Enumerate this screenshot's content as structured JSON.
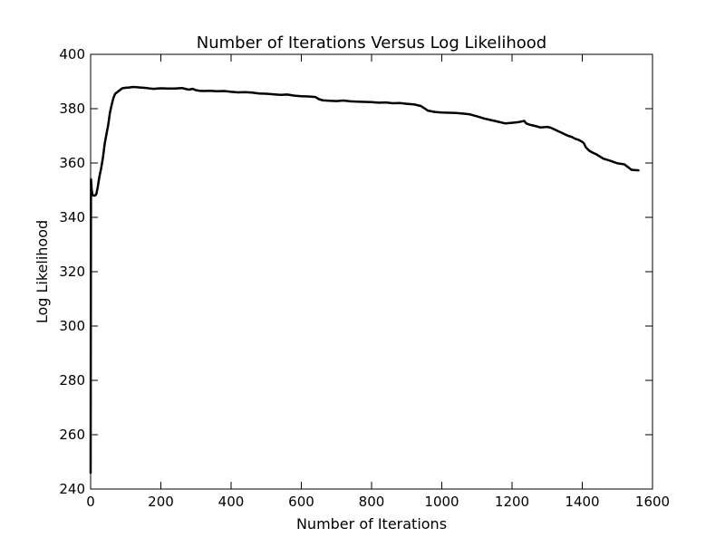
{
  "chart_data": {
    "type": "line",
    "title": "Number of Iterations Versus Log Likelihood",
    "xlabel": "Number of Iterations",
    "ylabel": "Log Likelihood",
    "xlim": [
      0,
      1600
    ],
    "ylim": [
      240,
      400
    ],
    "xticks": [
      0,
      200,
      400,
      600,
      800,
      1000,
      1200,
      1400,
      1600
    ],
    "yticks": [
      240,
      260,
      280,
      300,
      320,
      340,
      360,
      380,
      400
    ],
    "xtick_labels": [
      "0",
      "200",
      "400",
      "600",
      "800",
      "1000",
      "1200",
      "1400",
      "1600"
    ],
    "ytick_labels": [
      "240",
      "260",
      "280",
      "300",
      "320",
      "340",
      "360",
      "380",
      "400"
    ],
    "grid": false,
    "legend": "none",
    "line_color": "#000000",
    "series": [
      {
        "x": [
          0,
          1,
          2,
          3,
          5,
          8,
          12,
          16,
          20,
          25,
          30,
          35,
          40,
          45,
          50,
          55,
          60,
          65,
          70,
          75,
          80,
          85,
          90,
          100,
          110,
          120,
          130,
          140,
          150,
          160,
          170,
          180,
          190,
          200,
          220,
          240,
          260,
          270,
          280,
          290,
          300,
          310,
          320,
          340,
          360,
          380,
          400,
          420,
          440,
          460,
          480,
          500,
          520,
          540,
          560,
          580,
          600,
          620,
          640,
          650,
          660,
          680,
          700,
          720,
          740,
          760,
          780,
          800,
          820,
          840,
          860,
          880,
          900,
          920,
          930,
          940,
          950,
          960,
          980,
          1000,
          1020,
          1040,
          1060,
          1080,
          1100,
          1120,
          1140,
          1160,
          1180,
          1200,
          1220,
          1235,
          1240,
          1250,
          1260,
          1270,
          1280,
          1300,
          1310,
          1320,
          1330,
          1340,
          1350,
          1360,
          1370,
          1380,
          1390,
          1400,
          1405,
          1410,
          1420,
          1430,
          1440,
          1460,
          1480,
          1500,
          1520,
          1540,
          1560
        ],
        "y": [
          246,
          354,
          352,
          350,
          348.5,
          348,
          348,
          348.5,
          351,
          355,
          358,
          362,
          367,
          370.5,
          374,
          378.5,
          381.5,
          384,
          385.5,
          386,
          386.5,
          387,
          387.5,
          387.7,
          387.8,
          388,
          387.9,
          387.8,
          387.7,
          387.6,
          387.4,
          387.3,
          387.4,
          387.5,
          387.4,
          387.4,
          387.6,
          387.3,
          387.0,
          387.3,
          386.8,
          386.6,
          386.5,
          386.6,
          386.4,
          386.5,
          386.2,
          386.0,
          386.1,
          385.9,
          385.6,
          385.5,
          385.3,
          385.1,
          385.2,
          384.8,
          384.6,
          384.5,
          384.3,
          383.5,
          383.1,
          382.9,
          382.8,
          383.0,
          382.7,
          382.6,
          382.5,
          382.4,
          382.2,
          382.3,
          382.0,
          382.1,
          381.8,
          381.6,
          381.3,
          381.0,
          380.2,
          379.3,
          378.8,
          378.6,
          378.5,
          378.4,
          378.2,
          377.9,
          377.2,
          376.4,
          375.8,
          375.2,
          374.6,
          374.8,
          375.1,
          375.5,
          374.6,
          374.1,
          373.8,
          373.5,
          373.1,
          373.3,
          373.0,
          372.4,
          371.8,
          371.2,
          370.6,
          370.0,
          369.6,
          368.9,
          368.5,
          367.8,
          367.2,
          365.8,
          364.5,
          363.8,
          363.2,
          361.6,
          360.8,
          359.9,
          359.5,
          357.5,
          357.3
        ]
      }
    ]
  }
}
